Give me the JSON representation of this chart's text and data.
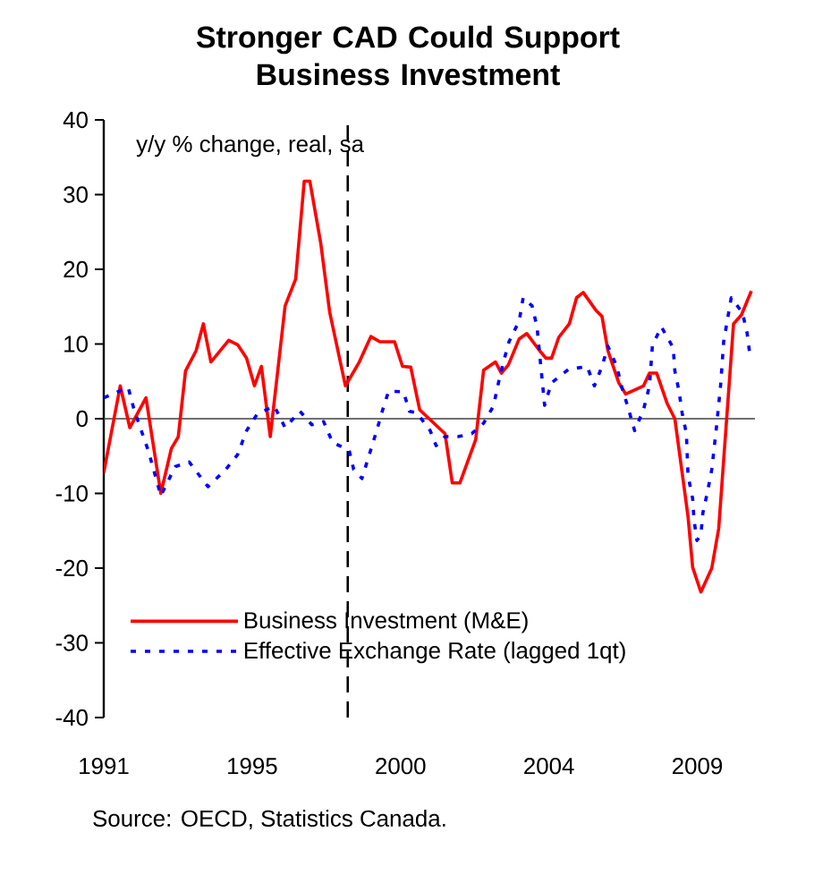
{
  "chart_data": {
    "type": "line",
    "title": "Stronger CAD Could Support Business Investment",
    "annotations": [
      "y/y % change, real, sa",
      "Source: OECD, Statistics Canada."
    ],
    "xlim": [
      1991,
      2010.75
    ],
    "xticks": [
      {
        "value": 1991,
        "label": "1991"
      },
      {
        "value": 1995.5,
        "label": "1995"
      },
      {
        "value": 2000,
        "label": "2000"
      },
      {
        "value": 2004.5,
        "label": "2004"
      },
      {
        "value": 2009,
        "label": "2009"
      }
    ],
    "ylim": [
      -40,
      40
    ],
    "yticks": [
      -40,
      -30,
      -20,
      -10,
      0,
      10,
      20,
      30,
      40
    ],
    "grid": false,
    "legend": "bottom left",
    "marker": "none",
    "ref_lines": [
      {
        "axis": "y",
        "value": 0,
        "color": "#404040",
        "line_style": "solid"
      },
      {
        "axis": "x",
        "value": 1998.4,
        "color": "#000000",
        "line_style": "dashed"
      }
    ],
    "series": [
      {
        "name": "Business Investment (M&E)",
        "color": "#ff0000",
        "line_style": "solid",
        "x": [
          1991.0,
          1991.5,
          1991.79,
          1992.28,
          1992.73,
          1993.05,
          1993.26,
          1993.48,
          1993.8,
          1994.02,
          1994.25,
          1994.79,
          1995.06,
          1995.33,
          1995.57,
          1995.78,
          1996.05,
          1996.5,
          1996.82,
          1997.08,
          1997.25,
          1997.58,
          1997.85,
          1998.33,
          1998.75,
          1999.1,
          1999.37,
          1999.82,
          2000.06,
          2000.31,
          2000.58,
          2001.35,
          2001.57,
          2001.8,
          2002.28,
          2002.52,
          2002.88,
          2003.06,
          2003.27,
          2003.6,
          2003.83,
          2004.22,
          2004.41,
          2004.58,
          2004.8,
          2005.12,
          2005.34,
          2005.54,
          2005.93,
          2006.11,
          2006.29,
          2006.62,
          2006.83,
          2007.37,
          2007.55,
          2007.77,
          2008.09,
          2008.32,
          2008.72,
          2008.86,
          2009.11,
          2009.44,
          2009.65,
          2010.1,
          2010.34,
          2010.64
        ],
        "values": [
          -7.2,
          4.4,
          -1.2,
          2.8,
          -10,
          -4,
          -2.4,
          6.4,
          9.1,
          12.7,
          7.6,
          10.5,
          9.9,
          8.1,
          4.4,
          7.0,
          -2.4,
          15.1,
          18.7,
          31.8,
          31.8,
          23.5,
          14.3,
          4.4,
          7.6,
          11.0,
          10.3,
          10.3,
          7.0,
          6.9,
          1.2,
          -2.0,
          -8.6,
          -8.6,
          -2.8,
          6.5,
          7.6,
          6.1,
          7.2,
          10.7,
          11.4,
          9.1,
          8.1,
          8.1,
          10.9,
          12.7,
          16.2,
          16.9,
          14.5,
          13.7,
          9.1,
          4.8,
          3.3,
          4.4,
          6.1,
          6.1,
          2.0,
          0,
          -13.1,
          -19.9,
          -23.2,
          -20,
          -14.7,
          12.7,
          13.9,
          17.1
        ]
      },
      {
        "name": "Effective Exchange Rate (lagged 1qt)",
        "color": "#0000ff",
        "line_style": "dotted",
        "x": [
          1991.0,
          1991.74,
          1991.92,
          1992.36,
          1992.73,
          1993.17,
          1993.59,
          1994.16,
          1994.7,
          1995.06,
          1995.33,
          1995.65,
          1996.17,
          1996.5,
          1996.95,
          1997.31,
          1997.67,
          1997.94,
          1998.44,
          1998.58,
          1998.83,
          1999.25,
          1999.46,
          1999.64,
          2000.09,
          2000.27,
          2000.49,
          2000.9,
          2001.08,
          2001.35,
          2001.74,
          2002.16,
          2002.52,
          2002.82,
          2002.97,
          2003.11,
          2003.29,
          2003.6,
          2003.72,
          2003.99,
          2004.14,
          2004.26,
          2004.37,
          2004.58,
          2005.09,
          2005.66,
          2005.88,
          2006.11,
          2006.29,
          2006.56,
          2006.7,
          2006.92,
          2007.1,
          2007.37,
          2007.55,
          2007.64,
          2007.91,
          2008.27,
          2008.32,
          2008.45,
          2008.54,
          2008.67,
          2008.72,
          2008.86,
          2008.9,
          2008.99,
          2009.11,
          2009.17,
          2009.31,
          2009.44,
          2009.58,
          2009.71,
          2009.8,
          2009.94,
          2010.03,
          2010.37,
          2010.51,
          2010.6
        ],
        "values": [
          2.8,
          4.2,
          1.2,
          -4.4,
          -10.3,
          -6.4,
          -5.8,
          -9.1,
          -6.8,
          -4.8,
          -1.6,
          0.6,
          1.7,
          -1.2,
          1.0,
          -0.8,
          -0.4,
          -3.2,
          -4.2,
          -6.8,
          -8.0,
          -2.0,
          1.2,
          3.7,
          3.6,
          1.0,
          0.8,
          -1.6,
          -3.6,
          -2.4,
          -2.4,
          -2.0,
          -0.6,
          1.7,
          4.8,
          7.4,
          10.3,
          13.1,
          16.2,
          15.1,
          12.3,
          6.8,
          1.8,
          4.8,
          6.6,
          7.0,
          4.4,
          7.0,
          9.7,
          7.0,
          4.4,
          1.2,
          -1.6,
          1.2,
          4.4,
          9.8,
          12.3,
          9.5,
          6.4,
          3.6,
          0.8,
          -2.0,
          -7.6,
          -10.7,
          -13.5,
          -16.3,
          -15.5,
          -12.6,
          -9.8,
          -6.8,
          -1.2,
          4.6,
          10.3,
          13.9,
          16.2,
          14.2,
          11.5,
          8.4
        ]
      }
    ]
  }
}
